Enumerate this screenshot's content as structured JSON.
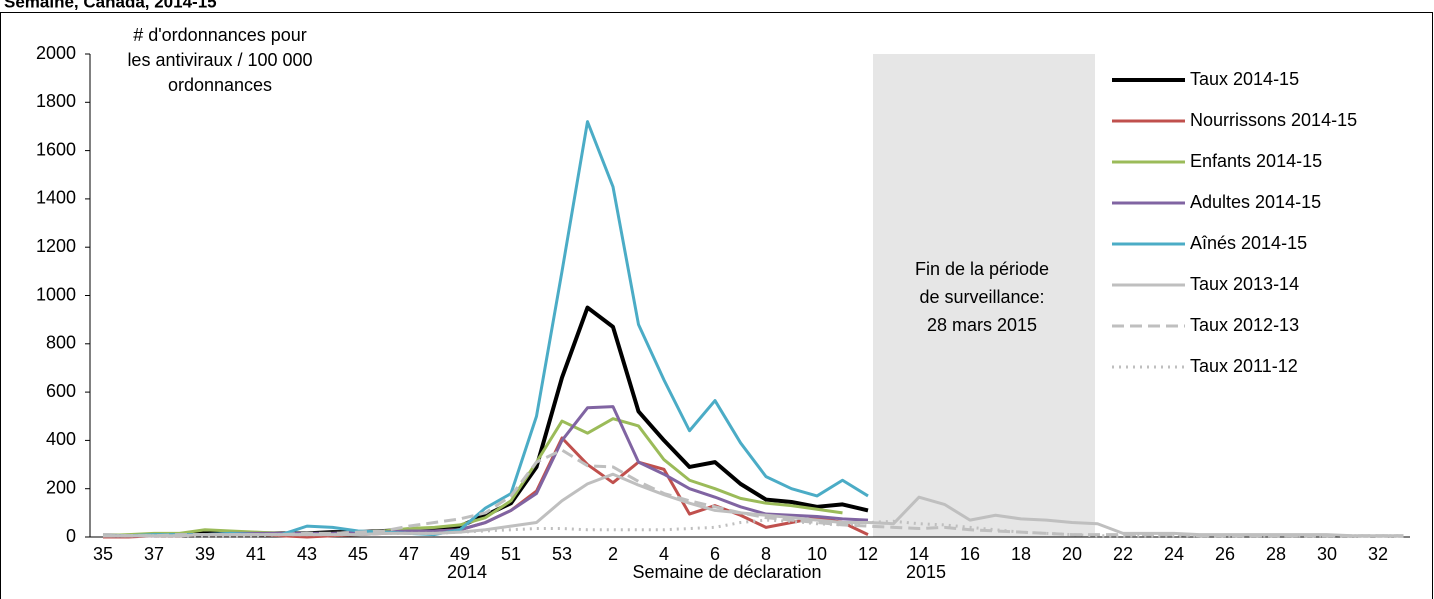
{
  "chart_data": {
    "type": "line",
    "title": "Semaine, Canada, 2014-15",
    "y_label": [
      "# d'ordonnances pour",
      "les antiviraux  / 100 000",
      "ordonnances"
    ],
    "x_label": "Semaine de déclaration",
    "year_labels": [
      "2014",
      "2015"
    ],
    "annotation": [
      "Fin de la période",
      "de surveillance:",
      "28 mars 2015"
    ],
    "categories": [
      "35",
      null,
      "37",
      null,
      "39",
      null,
      "41",
      null,
      "43",
      null,
      "45",
      null,
      "47",
      null,
      "49",
      null,
      "51",
      null,
      "53",
      null,
      "2",
      null,
      "4",
      null,
      "6",
      null,
      "8",
      null,
      "10",
      null,
      "12",
      null,
      "14",
      null,
      "16",
      null,
      "18",
      null,
      "20",
      null,
      "22",
      null,
      "24",
      null,
      "26",
      null,
      "28",
      null,
      "30",
      null,
      "32",
      null
    ],
    "ylim": [
      0,
      2000
    ],
    "yticks": [
      0,
      200,
      400,
      600,
      800,
      1000,
      1200,
      1400,
      1600,
      1800,
      2000
    ],
    "grid": false,
    "legend": "right",
    "series": [
      {
        "name": "Taux 2014-15",
        "color": "#000000",
        "width": 4,
        "dash": "solid",
        "values": [
          5,
          5,
          10,
          10,
          15,
          15,
          15,
          15,
          15,
          20,
          20,
          25,
          30,
          35,
          45,
          90,
          140,
          290,
          660,
          950,
          870,
          520,
          400,
          290,
          310,
          220,
          155,
          145,
          125,
          135,
          110,
          null,
          null,
          null,
          null,
          null,
          null,
          null,
          null,
          null,
          null,
          null,
          null,
          null,
          null,
          null,
          null,
          null,
          null,
          null,
          null,
          null
        ]
      },
      {
        "name": "Nourrissons 2014-15",
        "color": "#c0504d",
        "width": 3,
        "dash": "solid",
        "values": [
          0,
          0,
          5,
          5,
          10,
          10,
          10,
          5,
          0,
          5,
          10,
          15,
          20,
          25,
          30,
          60,
          110,
          190,
          410,
          300,
          225,
          310,
          280,
          95,
          130,
          90,
          40,
          60,
          80,
          60,
          10,
          null,
          null,
          null,
          null,
          null,
          null,
          null,
          null,
          null,
          null,
          null,
          null,
          null,
          null,
          null,
          null,
          null,
          null,
          null,
          null,
          null
        ]
      },
      {
        "name": "Enfants 2014-15",
        "color": "#9bbb59",
        "width": 3,
        "dash": "solid",
        "values": [
          5,
          10,
          15,
          15,
          30,
          25,
          20,
          15,
          15,
          15,
          20,
          25,
          35,
          40,
          50,
          80,
          150,
          310,
          480,
          430,
          490,
          460,
          320,
          235,
          200,
          160,
          140,
          130,
          115,
          100,
          null,
          null,
          null,
          null,
          null,
          null,
          null,
          null,
          null,
          null,
          null,
          null,
          null,
          null,
          null,
          null,
          null,
          null,
          null,
          null,
          null,
          null
        ]
      },
      {
        "name": "Adultes 2014-15",
        "color": "#8064a2",
        "width": 3,
        "dash": "solid",
        "values": [
          5,
          5,
          5,
          10,
          10,
          15,
          15,
          15,
          15,
          15,
          20,
          20,
          25,
          25,
          30,
          60,
          110,
          180,
          400,
          535,
          540,
          310,
          260,
          200,
          165,
          125,
          95,
          90,
          85,
          75,
          70,
          null,
          null,
          null,
          null,
          null,
          null,
          null,
          null,
          null,
          null,
          null,
          null,
          null,
          null,
          null,
          null,
          null,
          null,
          null,
          null,
          null
        ]
      },
      {
        "name": "Aînés 2014-15",
        "color": "#4bacc6",
        "width": 3,
        "dash": "solid",
        "values": [
          5,
          5,
          10,
          10,
          10,
          15,
          10,
          10,
          45,
          40,
          25,
          20,
          15,
          10,
          30,
          120,
          180,
          500,
          1100,
          1720,
          1450,
          880,
          650,
          440,
          565,
          390,
          250,
          200,
          170,
          235,
          170,
          null,
          null,
          null,
          null,
          null,
          null,
          null,
          null,
          null,
          null,
          null,
          null,
          null,
          null,
          null,
          null,
          null,
          null,
          null,
          null,
          null
        ]
      },
      {
        "name": "Taux 2013-14",
        "color": "#bfbfbf",
        "width": 3,
        "dash": "solid",
        "values": [
          5,
          5,
          5,
          5,
          10,
          10,
          10,
          10,
          10,
          10,
          10,
          15,
          15,
          15,
          20,
          30,
          45,
          60,
          150,
          220,
          260,
          215,
          175,
          140,
          110,
          100,
          90,
          80,
          70,
          60,
          60,
          55,
          165,
          135,
          70,
          90,
          75,
          70,
          60,
          55,
          15,
          15,
          15,
          10,
          10,
          10,
          10,
          10,
          10,
          5,
          5,
          5
        ]
      },
      {
        "name": "Taux 2012-13",
        "color": "#bfbfbf",
        "width": 3,
        "dash": "dashed",
        "values": [
          5,
          5,
          5,
          10,
          10,
          10,
          10,
          10,
          15,
          15,
          20,
          25,
          45,
          60,
          75,
          100,
          170,
          310,
          360,
          295,
          290,
          230,
          180,
          150,
          125,
          100,
          80,
          70,
          60,
          50,
          45,
          40,
          35,
          40,
          30,
          25,
          20,
          15,
          10,
          10,
          10,
          10,
          10,
          5,
          5,
          5,
          5,
          5,
          5,
          5,
          5,
          5
        ]
      },
      {
        "name": "Taux 2011-12",
        "color": "#bfbfbf",
        "width": 3,
        "dash": "dotted",
        "values": [
          5,
          5,
          5,
          5,
          5,
          5,
          5,
          10,
          10,
          10,
          10,
          15,
          15,
          15,
          20,
          25,
          30,
          35,
          35,
          30,
          30,
          30,
          30,
          35,
          40,
          60,
          70,
          65,
          55,
          50,
          60,
          65,
          55,
          50,
          40,
          30,
          20,
          15,
          10,
          5,
          5,
          5,
          5,
          5,
          5,
          5,
          5,
          5,
          5,
          5,
          5,
          5
        ]
      }
    ]
  }
}
